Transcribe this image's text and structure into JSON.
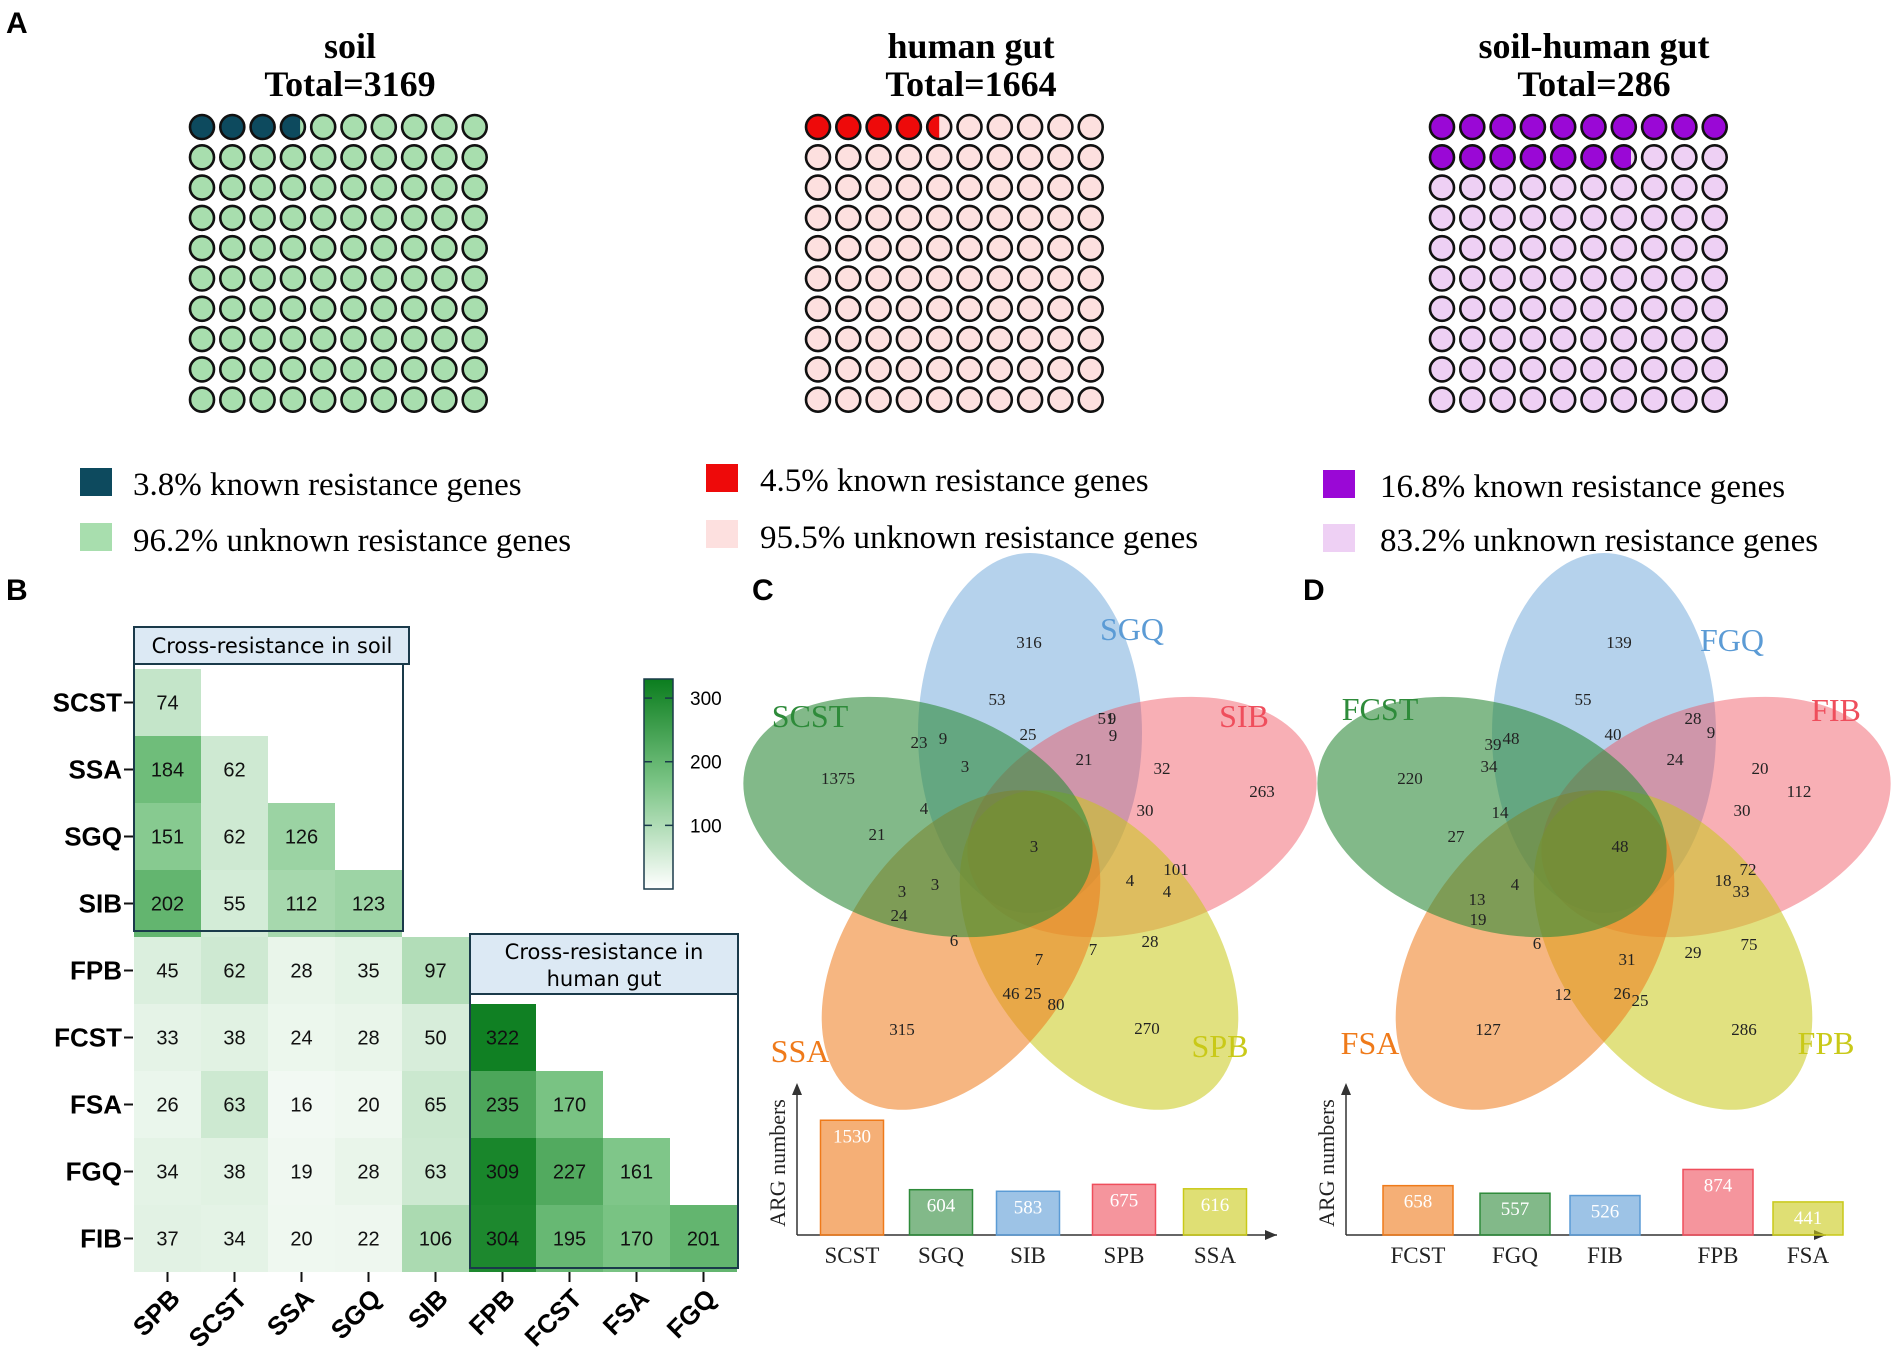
{
  "panel_letters": {
    "a": "A",
    "b": "B",
    "c": "C",
    "d": "D"
  },
  "chart_data": [
    {
      "panel": "A",
      "type": "waffle",
      "charts": [
        {
          "id": "soil",
          "title": "soil",
          "total_label": "Total=3169",
          "known_pct": 3.8,
          "known_color": "#0d4a5e",
          "unknown_color": "#a8deae",
          "legend": [
            "3.8% known resistance genes",
            "96.2% unknown resistance genes"
          ]
        },
        {
          "id": "gut",
          "title": "human gut",
          "total_label": "Total=1664",
          "known_pct": 4.5,
          "known_color": "#ee0a0a",
          "unknown_color": "#fde0df",
          "legend": [
            "4.5% known resistance genes",
            "95.5% unknown resistance genes"
          ]
        },
        {
          "id": "soilgut",
          "title": "soil-human gut",
          "total_label": "Total=286",
          "known_pct": 16.8,
          "known_color": "#9a08d6",
          "unknown_color": "#eed0f4",
          "legend": [
            "16.8%  known resistance genes",
            "83.2%  unknown resistance genes"
          ]
        }
      ]
    },
    {
      "panel": "B",
      "type": "heatmap",
      "rows": [
        "SCST",
        "SSA",
        "SGQ",
        "SIB",
        "FPB",
        "FCST",
        "FSA",
        "FGQ",
        "FIB"
      ],
      "cols": [
        "SPB",
        "SCST",
        "SSA",
        "SGQ",
        "SIB",
        "FPB",
        "FCST",
        "FSA",
        "FGQ"
      ],
      "values": [
        [
          74,
          null,
          null,
          null,
          null,
          null,
          null,
          null,
          null
        ],
        [
          184,
          62,
          null,
          null,
          null,
          null,
          null,
          null,
          null
        ],
        [
          151,
          62,
          126,
          null,
          null,
          null,
          null,
          null,
          null
        ],
        [
          202,
          55,
          112,
          123,
          null,
          null,
          null,
          null,
          null
        ],
        [
          45,
          62,
          28,
          35,
          97,
          null,
          null,
          null,
          null
        ],
        [
          33,
          38,
          24,
          28,
          50,
          322,
          null,
          null,
          null
        ],
        [
          26,
          63,
          16,
          20,
          65,
          235,
          170,
          null,
          null
        ],
        [
          34,
          38,
          19,
          28,
          63,
          309,
          227,
          161,
          null
        ],
        [
          37,
          34,
          20,
          22,
          106,
          304,
          195,
          170,
          201
        ]
      ],
      "vmin": 0,
      "vmax": 330,
      "colorbar_ticks": [
        100,
        200,
        300
      ],
      "box_labels": {
        "soil": "Cross-resistance in soil",
        "gut_line1": "Cross-resistance in",
        "gut_line2": "human gut"
      }
    },
    {
      "panel": "C",
      "type": "venn5",
      "sets": [
        "SGQ",
        "SIB",
        "SPB",
        "SSA",
        "SCST"
      ],
      "set_colors": [
        "#5b9bd5",
        "#ef4e5c",
        "#c9c918",
        "#ef7a1a",
        "#2e8b3a"
      ],
      "region_values": [
        "316",
        "263",
        "270",
        "315",
        "1375",
        "53",
        "51",
        "9",
        "9",
        "32",
        "101",
        "4",
        "28",
        "24",
        "25",
        "80",
        "7",
        "46",
        "6",
        "3",
        "21",
        "23",
        "9",
        "3",
        "4",
        "25",
        "21",
        "30",
        "4",
        "7",
        "3",
        "3"
      ],
      "bar": {
        "ylabel": "ARG numbers",
        "categories": [
          "SCST",
          "SGQ",
          "SIB",
          "SPB",
          "SSA"
        ],
        "values": [
          1530,
          604,
          583,
          675,
          616
        ]
      }
    },
    {
      "panel": "D",
      "type": "venn5",
      "sets": [
        "FGQ",
        "FIB",
        "FPB",
        "FSA",
        "FCST"
      ],
      "set_colors": [
        "#5b9bd5",
        "#ef4e5c",
        "#c9c918",
        "#ef7a1a",
        "#2e8b3a"
      ],
      "region_values": [
        "139",
        "112",
        "286",
        "127",
        "220",
        "55",
        "28",
        "9",
        "20",
        "72",
        "33",
        "75",
        "29",
        "25",
        "26",
        "31",
        "12",
        "6",
        "19",
        "13",
        "27",
        "39",
        "48",
        "34",
        "40",
        "24",
        "30",
        "18",
        "4",
        "14",
        "48"
      ],
      "bar": {
        "ylabel": "ARG numbers",
        "categories": [
          "FCST",
          "FGQ",
          "FIB",
          "FPB",
          "FSA"
        ],
        "values": [
          658,
          557,
          526,
          874,
          441
        ]
      }
    }
  ]
}
